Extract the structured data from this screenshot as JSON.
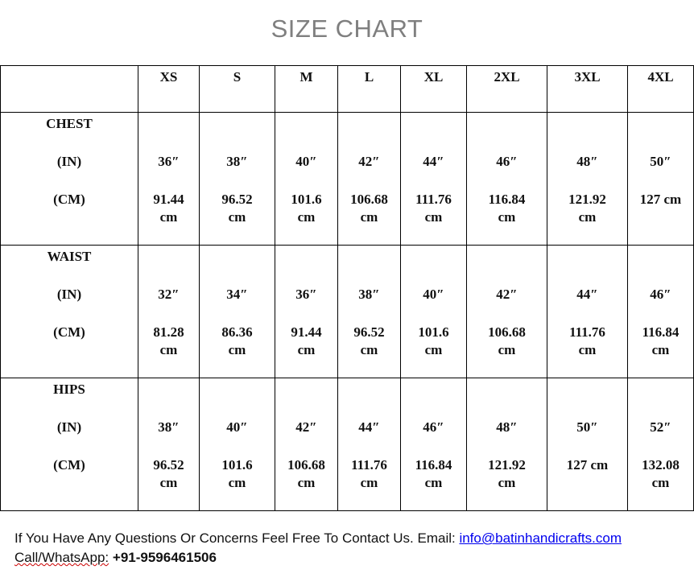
{
  "title": "SIZE CHART",
  "sizes": [
    "XS",
    "S",
    "M",
    "L",
    "XL",
    "2XL",
    "3XL",
    "4XL"
  ],
  "rows": [
    {
      "label": "CHEST",
      "in_label": "(IN)",
      "cm_label": "(CM)",
      "in": [
        "36″",
        "38″",
        "40″",
        "42″",
        "44″",
        "46″",
        "48″",
        "50″"
      ],
      "cm": [
        "91.44 cm",
        "96.52 cm",
        "101.6 cm",
        "106.68 cm",
        "111.76 cm",
        "116.84 cm",
        "121.92 cm",
        "127 cm"
      ]
    },
    {
      "label": "WAIST",
      "in_label": "(IN)",
      "cm_label": "(CM)",
      "in": [
        "32″",
        "34″",
        "36″",
        "38″",
        "40″",
        "42″",
        "44″",
        "46″"
      ],
      "cm": [
        "81.28 cm",
        "86.36 cm",
        "91.44 cm",
        "96.52 cm",
        "101.6 cm",
        "106.68 cm",
        "111.76 cm",
        "116.84 cm"
      ]
    },
    {
      "label": "HIPS",
      "in_label": "(IN)",
      "cm_label": "(CM)",
      "in": [
        "38″",
        "40″",
        "42″",
        "44″",
        "46″",
        "48″",
        "50″",
        "52″"
      ],
      "cm": [
        "96.52 cm",
        "101.6 cm",
        "106.68 cm",
        "111.76 cm",
        "116.84 cm",
        "121.92 cm",
        "127 cm",
        "132.08 cm"
      ]
    }
  ],
  "footer": {
    "line1": "If You Have Any Questions Or Concerns Feel Free To Contact Us. Email: ",
    "email": "info@batinhandicrafts.com",
    "call_label": "Call/WhatsApp:",
    "phone": " +91-9596461506",
    "link_color": "#0000ee"
  }
}
